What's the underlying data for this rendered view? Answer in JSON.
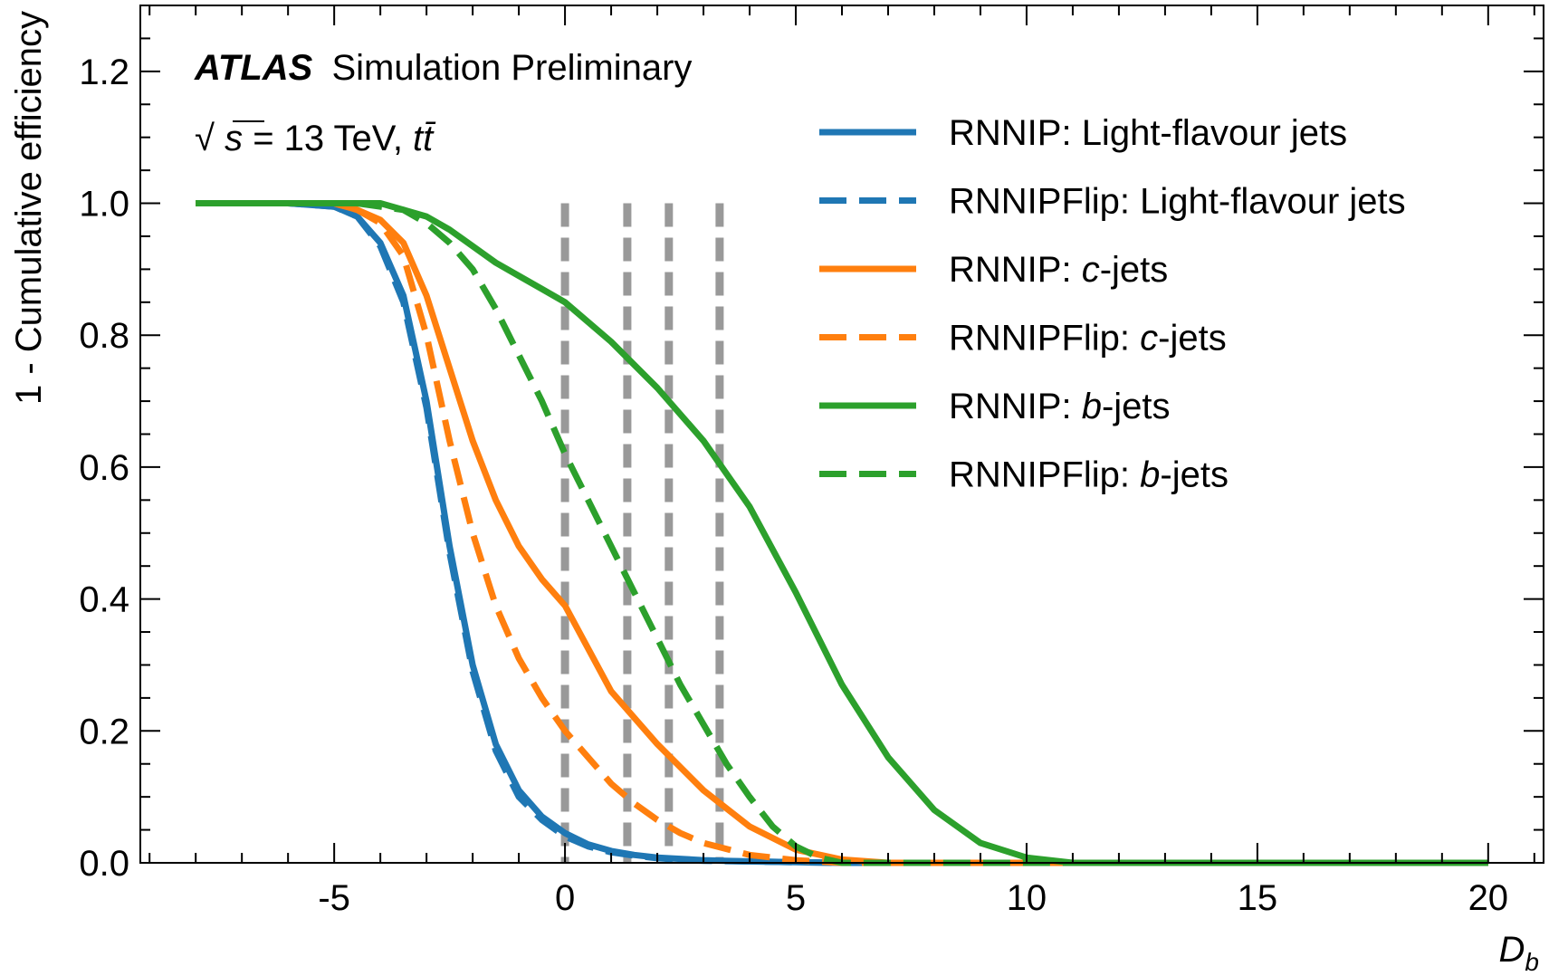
{
  "chart_data": {
    "type": "line",
    "experiment_label": "ATLAS",
    "status_label": "Simulation Preliminary",
    "energy_label": {
      "sqrt": "√",
      "s": "s",
      "rest": " = 13 TeV, ",
      "process": "tt̄"
    },
    "xlabel": "D",
    "xlabel_subscript": "b",
    "ylabel": "1 - Cumulative efficiency",
    "xlim": [
      -9.2,
      21.2
    ],
    "ylim": [
      0.0,
      1.3
    ],
    "x_ticks": [
      -5,
      0,
      5,
      10,
      15,
      20
    ],
    "x_tick_labels": [
      "-5",
      "0",
      "5",
      "10",
      "15",
      "20"
    ],
    "y_ticks": [
      0.0,
      0.2,
      0.4,
      0.6,
      0.8,
      1.0,
      1.2
    ],
    "y_tick_labels": [
      "0.0",
      "0.2",
      "0.4",
      "0.6",
      "0.8",
      "1.0",
      "1.2"
    ],
    "vertical_markers": [
      0.0,
      1.35,
      2.25,
      3.35
    ],
    "marker_color": "#999999",
    "legend_position": "top-right",
    "grid": false,
    "series": [
      {
        "name_prefix": "RNNIP: ",
        "name_main": "Light-flavour jets",
        "name_suffix": "",
        "color": "#1f77b4",
        "style": "solid",
        "x": [
          -8,
          -6,
          -5,
          -4.5,
          -4,
          -3.5,
          -3,
          -2.5,
          -2,
          -1.5,
          -1,
          -0.5,
          0,
          0.5,
          1,
          1.5,
          2,
          3,
          4,
          5,
          6,
          20
        ],
        "y": [
          1.0,
          1.0,
          0.995,
          0.98,
          0.94,
          0.86,
          0.7,
          0.48,
          0.3,
          0.18,
          0.11,
          0.07,
          0.045,
          0.028,
          0.018,
          0.012,
          0.008,
          0.004,
          0.002,
          0.001,
          0.0,
          0.0
        ]
      },
      {
        "name_prefix": "RNNIPFlip: ",
        "name_main": "Light-flavour jets",
        "name_suffix": "",
        "color": "#1f77b4",
        "style": "dashed",
        "x": [
          -8,
          -6,
          -5,
          -4.5,
          -4,
          -3.5,
          -3,
          -2.5,
          -2,
          -1.5,
          -1,
          -0.5,
          0,
          0.5,
          1,
          1.5,
          2,
          3,
          4,
          5,
          6,
          20
        ],
        "y": [
          1.0,
          1.0,
          0.995,
          0.98,
          0.935,
          0.85,
          0.69,
          0.47,
          0.29,
          0.17,
          0.1,
          0.065,
          0.04,
          0.025,
          0.016,
          0.011,
          0.007,
          0.003,
          0.002,
          0.001,
          0.0,
          0.0
        ]
      },
      {
        "name_prefix": "RNNIP: ",
        "name_main": "c",
        "name_suffix": "-jets",
        "color": "#ff7f0e",
        "style": "solid",
        "x": [
          -8,
          -5,
          -4.5,
          -4,
          -3.5,
          -3,
          -2.5,
          -2,
          -1.5,
          -1,
          -0.5,
          0,
          1,
          2,
          3,
          4,
          5,
          6,
          7,
          20
        ],
        "y": [
          1.0,
          1.0,
          0.99,
          0.975,
          0.94,
          0.86,
          0.75,
          0.64,
          0.55,
          0.48,
          0.43,
          0.39,
          0.26,
          0.18,
          0.11,
          0.055,
          0.02,
          0.005,
          0.0,
          0.0
        ]
      },
      {
        "name_prefix": "RNNIPFlip: ",
        "name_main": "c",
        "name_suffix": "-jets",
        "color": "#ff7f0e",
        "style": "dashed",
        "x": [
          -8,
          -5,
          -4.5,
          -4,
          -3.5,
          -3,
          -2.5,
          -2,
          -1.5,
          -1,
          -0.5,
          0,
          0.5,
          1,
          1.5,
          2,
          2.5,
          3,
          4,
          5,
          6,
          20
        ],
        "y": [
          1.0,
          1.0,
          0.99,
          0.97,
          0.92,
          0.8,
          0.64,
          0.5,
          0.39,
          0.31,
          0.25,
          0.2,
          0.16,
          0.12,
          0.09,
          0.065,
          0.045,
          0.03,
          0.012,
          0.004,
          0.0,
          0.0
        ]
      },
      {
        "name_prefix": "RNNIP: ",
        "name_main": "b",
        "name_suffix": "-jets",
        "color": "#2ca02c",
        "style": "solid",
        "x": [
          -8,
          -4,
          -3.5,
          -3,
          -2.5,
          -2,
          -1.5,
          -1,
          -0.5,
          0,
          1,
          2,
          3,
          4,
          5,
          6,
          7,
          8,
          9,
          10,
          11,
          20
        ],
        "y": [
          1.0,
          1.0,
          0.99,
          0.98,
          0.96,
          0.935,
          0.91,
          0.89,
          0.87,
          0.85,
          0.79,
          0.72,
          0.64,
          0.54,
          0.41,
          0.27,
          0.16,
          0.08,
          0.03,
          0.008,
          0.0,
          0.0
        ]
      },
      {
        "name_prefix": "RNNIPFlip: ",
        "name_main": "b",
        "name_suffix": "-jets",
        "color": "#2ca02c",
        "style": "dashed",
        "x": [
          -8,
          -4.5,
          -4,
          -3.5,
          -3,
          -2.5,
          -2,
          -1.5,
          -1,
          -0.5,
          0,
          0.5,
          1,
          1.5,
          2,
          2.5,
          3,
          3.5,
          4,
          4.5,
          5,
          5.5,
          6,
          20
        ],
        "y": [
          1.0,
          1.0,
          0.995,
          0.99,
          0.97,
          0.94,
          0.9,
          0.84,
          0.77,
          0.7,
          0.62,
          0.55,
          0.48,
          0.41,
          0.34,
          0.27,
          0.21,
          0.15,
          0.1,
          0.055,
          0.025,
          0.008,
          0.0,
          0.0
        ]
      }
    ]
  }
}
